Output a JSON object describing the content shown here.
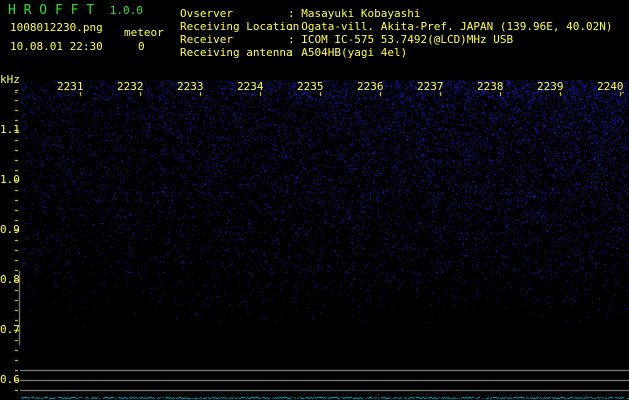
{
  "app": {
    "name": "H R O F F T",
    "version": "1.0.0"
  },
  "file": {
    "name": "1008012230.png",
    "datetime": "10.08.01 22:30"
  },
  "meteor": {
    "label": "meteor",
    "count": "0"
  },
  "info": [
    {
      "label": "Ovserver",
      "value": ": Masayuki Kobayashi"
    },
    {
      "label": "Receiving Location",
      "value": ": Ogata-vill. Akita-Pref. JAPAN (139.96E, 40.02N)"
    },
    {
      "label": "Receiver",
      "value": ": ICOM IC-575 53.7492(@LCD)MHz USB"
    },
    {
      "label": "Receiving antenna",
      "value": ": A504HB(yagi 4el)"
    }
  ],
  "axis": {
    "y_unit": "kHz",
    "y_ticks": [
      "1.1",
      "1.0",
      "0.9",
      "0.8",
      "0.7",
      "0.6"
    ],
    "x_ticks": [
      "2231",
      "2232",
      "2233",
      "2234",
      "2235",
      "2236",
      "2237",
      "2238",
      "2239",
      "2240"
    ]
  },
  "colors": {
    "text": "#ffff40",
    "title": "#30e030",
    "noise": "#2020c0",
    "trace": "#00c0e0"
  }
}
